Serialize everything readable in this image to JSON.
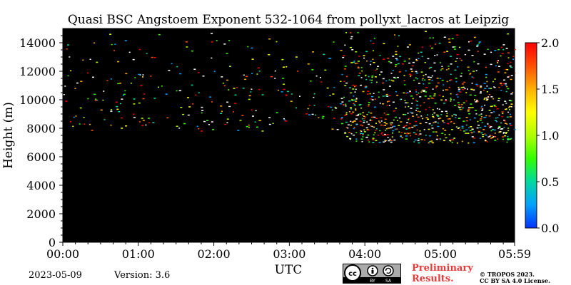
{
  "chart_data": {
    "type": "heatmap",
    "title": "Quasi BSC Angstoem Exponent 532-1064 from pollyxt_lacros at Leipzig",
    "xlabel": "UTC",
    "ylabel": "Height (m)",
    "xlim": [
      "00:00",
      "05:59"
    ],
    "ylim": [
      0,
      15000
    ],
    "x_tick_labels": [
      "00:00",
      "01:00",
      "02:00",
      "03:00",
      "04:00",
      "05:00",
      "05:59"
    ],
    "y_tick_labels": [
      "0",
      "2000",
      "4000",
      "6000",
      "8000",
      "10000",
      "12000",
      "14000"
    ],
    "y_ticks": [
      0,
      2000,
      4000,
      6000,
      8000,
      10000,
      12000,
      14000
    ],
    "colorbar": {
      "range": [
        0.0,
        2.0
      ],
      "tick_labels": [
        "0.0",
        "0.5",
        "1.0",
        "1.5",
        "2.0"
      ],
      "ticks": [
        0.0,
        0.5,
        1.0,
        1.5,
        2.0
      ],
      "colors": [
        "#0033ff",
        "#00a0ff",
        "#00d8a0",
        "#33ff00",
        "#b0ff00",
        "#ffff00",
        "#ffb000",
        "#ff5000",
        "#ff0000"
      ]
    },
    "background_color": "#000000",
    "sparse_signal_regions": [
      {
        "time_start": "00:00",
        "time_end": "03:40",
        "height_start": 7800,
        "height_end": 15000,
        "density": "low"
      },
      {
        "time_start": "03:40",
        "time_end": "05:59",
        "height_start": 7000,
        "height_end": 15000,
        "density": "high"
      }
    ]
  },
  "footer": {
    "date": "2023-05-09",
    "version": "Version: 3.6",
    "preliminary_line1": "Preliminary",
    "preliminary_line2": "Results.",
    "copyright_line1": "© TROPOS 2023.",
    "copyright_line2": "CC BY SA 4.0 License.",
    "license_badge": {
      "cc": "cc",
      "by": "BY",
      "sa": "SA"
    }
  }
}
